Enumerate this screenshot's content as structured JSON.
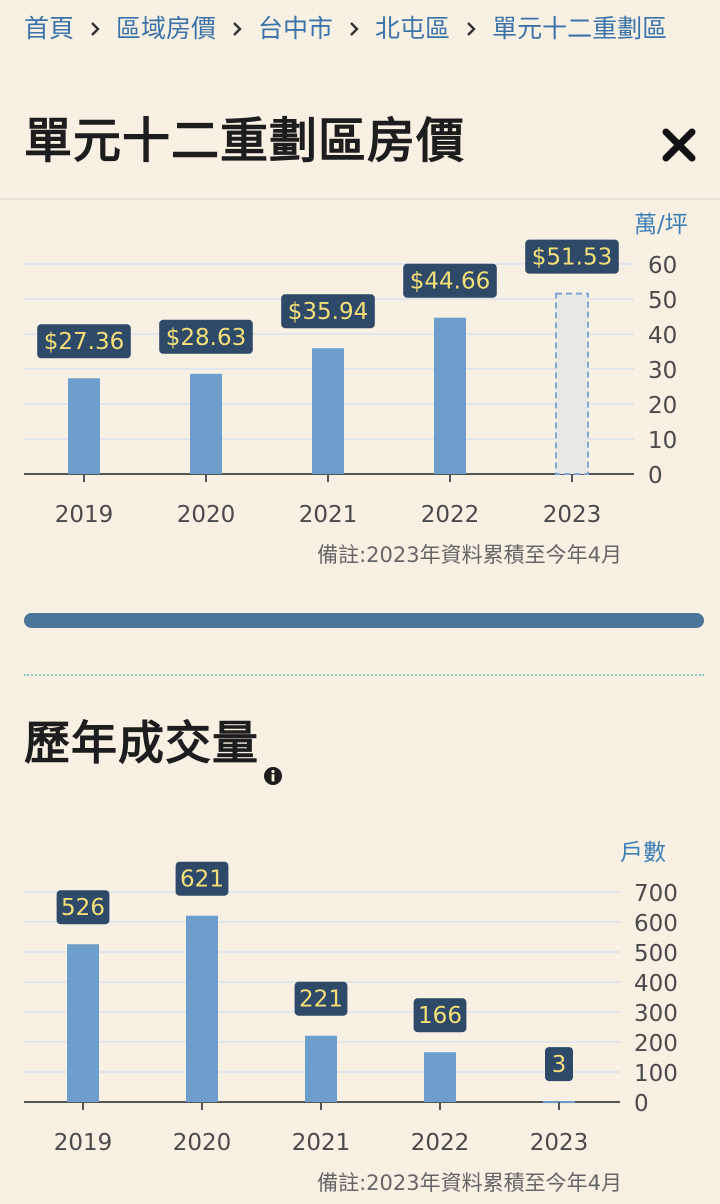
{
  "breadcrumb": {
    "items": [
      {
        "label": "首頁"
      },
      {
        "label": "區域房價"
      },
      {
        "label": "台中市"
      },
      {
        "label": "北屯區"
      },
      {
        "label": "單元十二重劃區"
      }
    ]
  },
  "page": {
    "title": "單元十二重劃區房價"
  },
  "volume_section": {
    "title": "歷年成交量"
  },
  "chart_data": [
    {
      "type": "bar",
      "categories": [
        "2019",
        "2020",
        "2021",
        "2022",
        "2023"
      ],
      "values": [
        27.36,
        28.63,
        35.94,
        44.66,
        51.53
      ],
      "value_labels": [
        "$27.36",
        "$28.63",
        "$35.94",
        "$44.66",
        "$51.53"
      ],
      "unit": "萬/坪",
      "ylim": [
        0,
        60
      ],
      "yticks": [
        "0",
        "10",
        "20",
        "30",
        "40",
        "50",
        "60"
      ],
      "grid": true,
      "axis_side": "right",
      "partial_last": true,
      "note": "備註:2023年資料累積至今年4月",
      "colors": {
        "bar": "#6e9fcc",
        "partial_fill": "#e8e8e5",
        "partial_stroke": "#7fa9cf",
        "label_bg": "#2e4a68",
        "label_text": "#f3df7a"
      }
    },
    {
      "type": "bar",
      "categories": [
        "2019",
        "2020",
        "2021",
        "2022",
        "2023"
      ],
      "values": [
        526,
        621,
        221,
        166,
        3
      ],
      "value_labels": [
        "526",
        "621",
        "221",
        "166",
        "3"
      ],
      "unit": "戶數",
      "ylim": [
        0,
        700
      ],
      "yticks": [
        "0",
        "100",
        "200",
        "300",
        "400",
        "500",
        "600",
        "700"
      ],
      "grid": true,
      "axis_side": "right",
      "partial_last": false,
      "note": "備註:2023年資料累積至今年4月",
      "colors": {
        "bar": "#6e9fcc",
        "label_bg": "#2e4a68",
        "label_text": "#f3df7a"
      }
    }
  ]
}
